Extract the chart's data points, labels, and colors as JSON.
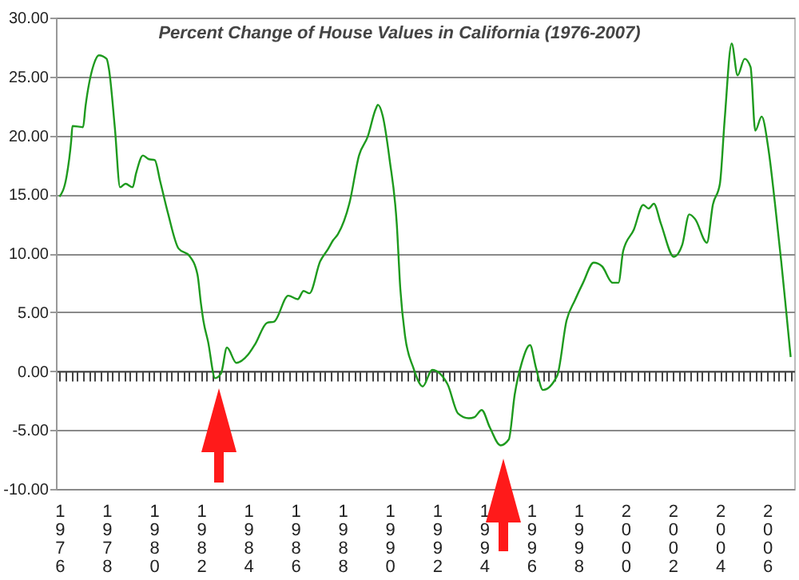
{
  "chart_data": {
    "type": "line",
    "title": "Percent Change of House Values in California (1976-2007)",
    "x": [
      1976.0,
      1976.3,
      1976.5,
      1976.55,
      1977.0,
      1977.1,
      1977.45,
      1977.67,
      1978.0,
      1978.1,
      1978.35,
      1978.57,
      1978.8,
      1979.1,
      1979.25,
      1979.54,
      1979.77,
      1980.04,
      1980.27,
      1980.6,
      1981.05,
      1981.5,
      1981.85,
      1982.0,
      1982.1,
      1982.3,
      1982.6,
      1982.85,
      1983.1,
      1983.5,
      1984.0,
      1984.3,
      1984.8,
      1985.1,
      1985.7,
      1986.1,
      1986.35,
      1986.6,
      1987.05,
      1987.4,
      1987.6,
      1987.8,
      1988.3,
      1988.7,
      1989.07,
      1989.4,
      1989.5,
      1989.7,
      1990.0,
      1990.3,
      1990.45,
      1990.65,
      1991.0,
      1991.4,
      1991.8,
      1992.45,
      1992.9,
      1993.35,
      1993.6,
      1993.9,
      1994.25,
      1994.7,
      1995.05,
      1995.3,
      1995.6,
      1995.95,
      1996.2,
      1996.5,
      1997.1,
      1997.5,
      1997.85,
      1998.2,
      1998.65,
      1999.0,
      1999.45,
      1999.7,
      1999.9,
      2000.35,
      2000.75,
      2000.98,
      2001.2,
      2001.5,
      2002.05,
      2002.4,
      2002.7,
      2002.95,
      2003.45,
      2003.7,
      2004.0,
      2004.2,
      2004.5,
      2004.75,
      2005.05,
      2005.3,
      2005.5,
      2005.77,
      2006.06,
      2006.33,
      2006.6,
      2006.8,
      2007.0
    ],
    "series": [
      {
        "color": "#1e9a1e",
        "values": [
          14.8,
          16.5,
          19.6,
          20.8,
          20.7,
          22.4,
          26.0,
          26.8,
          26.5,
          25.6,
          20.6,
          15.6,
          15.9,
          15.6,
          16.8,
          18.3,
          18.0,
          17.9,
          16.1,
          13.4,
          10.4,
          9.8,
          8.2,
          5.7,
          4.3,
          2.5,
          -0.6,
          -0.2,
          2.0,
          0.7,
          1.4,
          2.3,
          4.1,
          4.2,
          6.4,
          6.1,
          6.8,
          6.6,
          9.3,
          10.4,
          11.1,
          11.6,
          14.3,
          18.3,
          19.9,
          22.2,
          22.6,
          21.7,
          17.9,
          12.5,
          7.0,
          3.0,
          0.3,
          -1.3,
          0.1,
          -1.1,
          -3.6,
          -4.0,
          -3.9,
          -3.3,
          -4.8,
          -6.3,
          -5.8,
          -2.0,
          0.7,
          2.2,
          0.3,
          -1.6,
          -0.4,
          4.3,
          6.0,
          7.5,
          9.2,
          8.9,
          7.5,
          7.5,
          10.2,
          12.0,
          14.1,
          13.8,
          14.2,
          12.5,
          9.7,
          10.7,
          13.3,
          12.9,
          10.9,
          14.1,
          15.9,
          21.3,
          27.8,
          25.1,
          26.5,
          25.8,
          20.4,
          21.6,
          18.8,
          14.3,
          9.3,
          5.3,
          1.2
        ]
      }
    ],
    "xlim": [
      1975.85,
      2007.15
    ],
    "ylim": [
      -10,
      30
    ],
    "yticks": [
      {
        "value": -10,
        "label": "-10.00"
      },
      {
        "value": -5,
        "label": "-5.00"
      },
      {
        "value": 0,
        "label": "0.00"
      },
      {
        "value": 5,
        "label": "5.00"
      },
      {
        "value": 10,
        "label": "10.00"
      },
      {
        "value": 15,
        "label": "15.00"
      },
      {
        "value": 20,
        "label": "20.00"
      },
      {
        "value": 25,
        "label": "25.00"
      },
      {
        "value": 30,
        "label": "30.00"
      }
    ],
    "xticks": [
      1976,
      {
        "value": 1976.25,
        "label": null
      },
      {
        "value": 1976.5,
        "label": null
      },
      {
        "value": 1976.75,
        "label": null
      },
      {
        "value": 1977,
        "label": null
      },
      {
        "value": 1977.25,
        "label": null
      },
      {
        "value": 1977.5,
        "label": null
      },
      {
        "value": 1977.75,
        "label": null
      },
      1978,
      {
        "value": 1978.25,
        "label": null
      },
      {
        "value": 1978.5,
        "label": null
      },
      {
        "value": 1978.75,
        "label": null
      },
      {
        "value": 1979,
        "label": null
      },
      {
        "value": 1979.25,
        "label": null
      },
      {
        "value": 1979.5,
        "label": null
      },
      {
        "value": 1979.75,
        "label": null
      },
      1980,
      {
        "value": 1980.25,
        "label": null
      },
      {
        "value": 1980.5,
        "label": null
      },
      {
        "value": 1980.75,
        "label": null
      },
      {
        "value": 1981,
        "label": null
      },
      {
        "value": 1981.25,
        "label": null
      },
      {
        "value": 1981.5,
        "label": null
      },
      {
        "value": 1981.75,
        "label": null
      },
      1982,
      {
        "value": 1982.25,
        "label": null
      },
      {
        "value": 1982.5,
        "label": null
      },
      {
        "value": 1982.75,
        "label": null
      },
      {
        "value": 1983,
        "label": null
      },
      {
        "value": 1983.25,
        "label": null
      },
      {
        "value": 1983.5,
        "label": null
      },
      {
        "value": 1983.75,
        "label": null
      },
      1984,
      {
        "value": 1984.25,
        "label": null
      },
      {
        "value": 1984.5,
        "label": null
      },
      {
        "value": 1984.75,
        "label": null
      },
      {
        "value": 1985,
        "label": null
      },
      {
        "value": 1985.25,
        "label": null
      },
      {
        "value": 1985.5,
        "label": null
      },
      {
        "value": 1985.75,
        "label": null
      },
      1986,
      {
        "value": 1986.25,
        "label": null
      },
      {
        "value": 1986.5,
        "label": null
      },
      {
        "value": 1986.75,
        "label": null
      },
      {
        "value": 1987,
        "label": null
      },
      {
        "value": 1987.25,
        "label": null
      },
      {
        "value": 1987.5,
        "label": null
      },
      {
        "value": 1987.75,
        "label": null
      },
      1988,
      {
        "value": 1988.25,
        "label": null
      },
      {
        "value": 1988.5,
        "label": null
      },
      {
        "value": 1988.75,
        "label": null
      },
      {
        "value": 1989,
        "label": null
      },
      {
        "value": 1989.25,
        "label": null
      },
      {
        "value": 1989.5,
        "label": null
      },
      {
        "value": 1989.75,
        "label": null
      },
      1990,
      {
        "value": 1990.25,
        "label": null
      },
      {
        "value": 1990.5,
        "label": null
      },
      {
        "value": 1990.75,
        "label": null
      },
      {
        "value": 1991,
        "label": null
      },
      {
        "value": 1991.25,
        "label": null
      },
      {
        "value": 1991.5,
        "label": null
      },
      {
        "value": 1991.75,
        "label": null
      },
      1992,
      {
        "value": 1992.25,
        "label": null
      },
      {
        "value": 1992.5,
        "label": null
      },
      {
        "value": 1992.75,
        "label": null
      },
      {
        "value": 1993,
        "label": null
      },
      {
        "value": 1993.25,
        "label": null
      },
      {
        "value": 1993.5,
        "label": null
      },
      {
        "value": 1993.75,
        "label": null
      },
      1994,
      {
        "value": 1994.25,
        "label": null
      },
      {
        "value": 1994.5,
        "label": null
      },
      {
        "value": 1994.75,
        "label": null
      },
      {
        "value": 1995,
        "label": null
      },
      {
        "value": 1995.25,
        "label": null
      },
      {
        "value": 1995.5,
        "label": null
      },
      {
        "value": 1995.75,
        "label": null
      },
      1996,
      {
        "value": 1996.25,
        "label": null
      },
      {
        "value": 1996.5,
        "label": null
      },
      {
        "value": 1996.75,
        "label": null
      },
      {
        "value": 1997,
        "label": null
      },
      {
        "value": 1997.25,
        "label": null
      },
      {
        "value": 1997.5,
        "label": null
      },
      {
        "value": 1997.75,
        "label": null
      },
      1998,
      {
        "value": 1998.25,
        "label": null
      },
      {
        "value": 1998.5,
        "label": null
      },
      {
        "value": 1998.75,
        "label": null
      },
      {
        "value": 1999,
        "label": null
      },
      {
        "value": 1999.25,
        "label": null
      },
      {
        "value": 1999.5,
        "label": null
      },
      {
        "value": 1999.75,
        "label": null
      },
      2000,
      {
        "value": 2000.25,
        "label": null
      },
      {
        "value": 2000.5,
        "label": null
      },
      {
        "value": 2000.75,
        "label": null
      },
      {
        "value": 2001,
        "label": null
      },
      {
        "value": 2001.25,
        "label": null
      },
      {
        "value": 2001.5,
        "label": null
      },
      {
        "value": 2001.75,
        "label": null
      },
      2002,
      {
        "value": 2002.25,
        "label": null
      },
      {
        "value": 2002.5,
        "label": null
      },
      {
        "value": 2002.75,
        "label": null
      },
      {
        "value": 2003,
        "label": null
      },
      {
        "value": 2003.25,
        "label": null
      },
      {
        "value": 2003.5,
        "label": null
      },
      {
        "value": 2003.75,
        "label": null
      },
      2004,
      {
        "value": 2004.25,
        "label": null
      },
      {
        "value": 2004.5,
        "label": null
      },
      {
        "value": 2004.75,
        "label": null
      },
      {
        "value": 2005,
        "label": null
      },
      {
        "value": 2005.25,
        "label": null
      },
      {
        "value": 2005.5,
        "label": null
      },
      {
        "value": 2005.75,
        "label": null
      },
      2006,
      {
        "value": 2006.25,
        "label": null
      },
      {
        "value": 2006.5,
        "label": null
      },
      {
        "value": 2006.75,
        "label": null
      },
      {
        "value": 2007,
        "label": null
      }
    ],
    "grid": "y"
  }
}
